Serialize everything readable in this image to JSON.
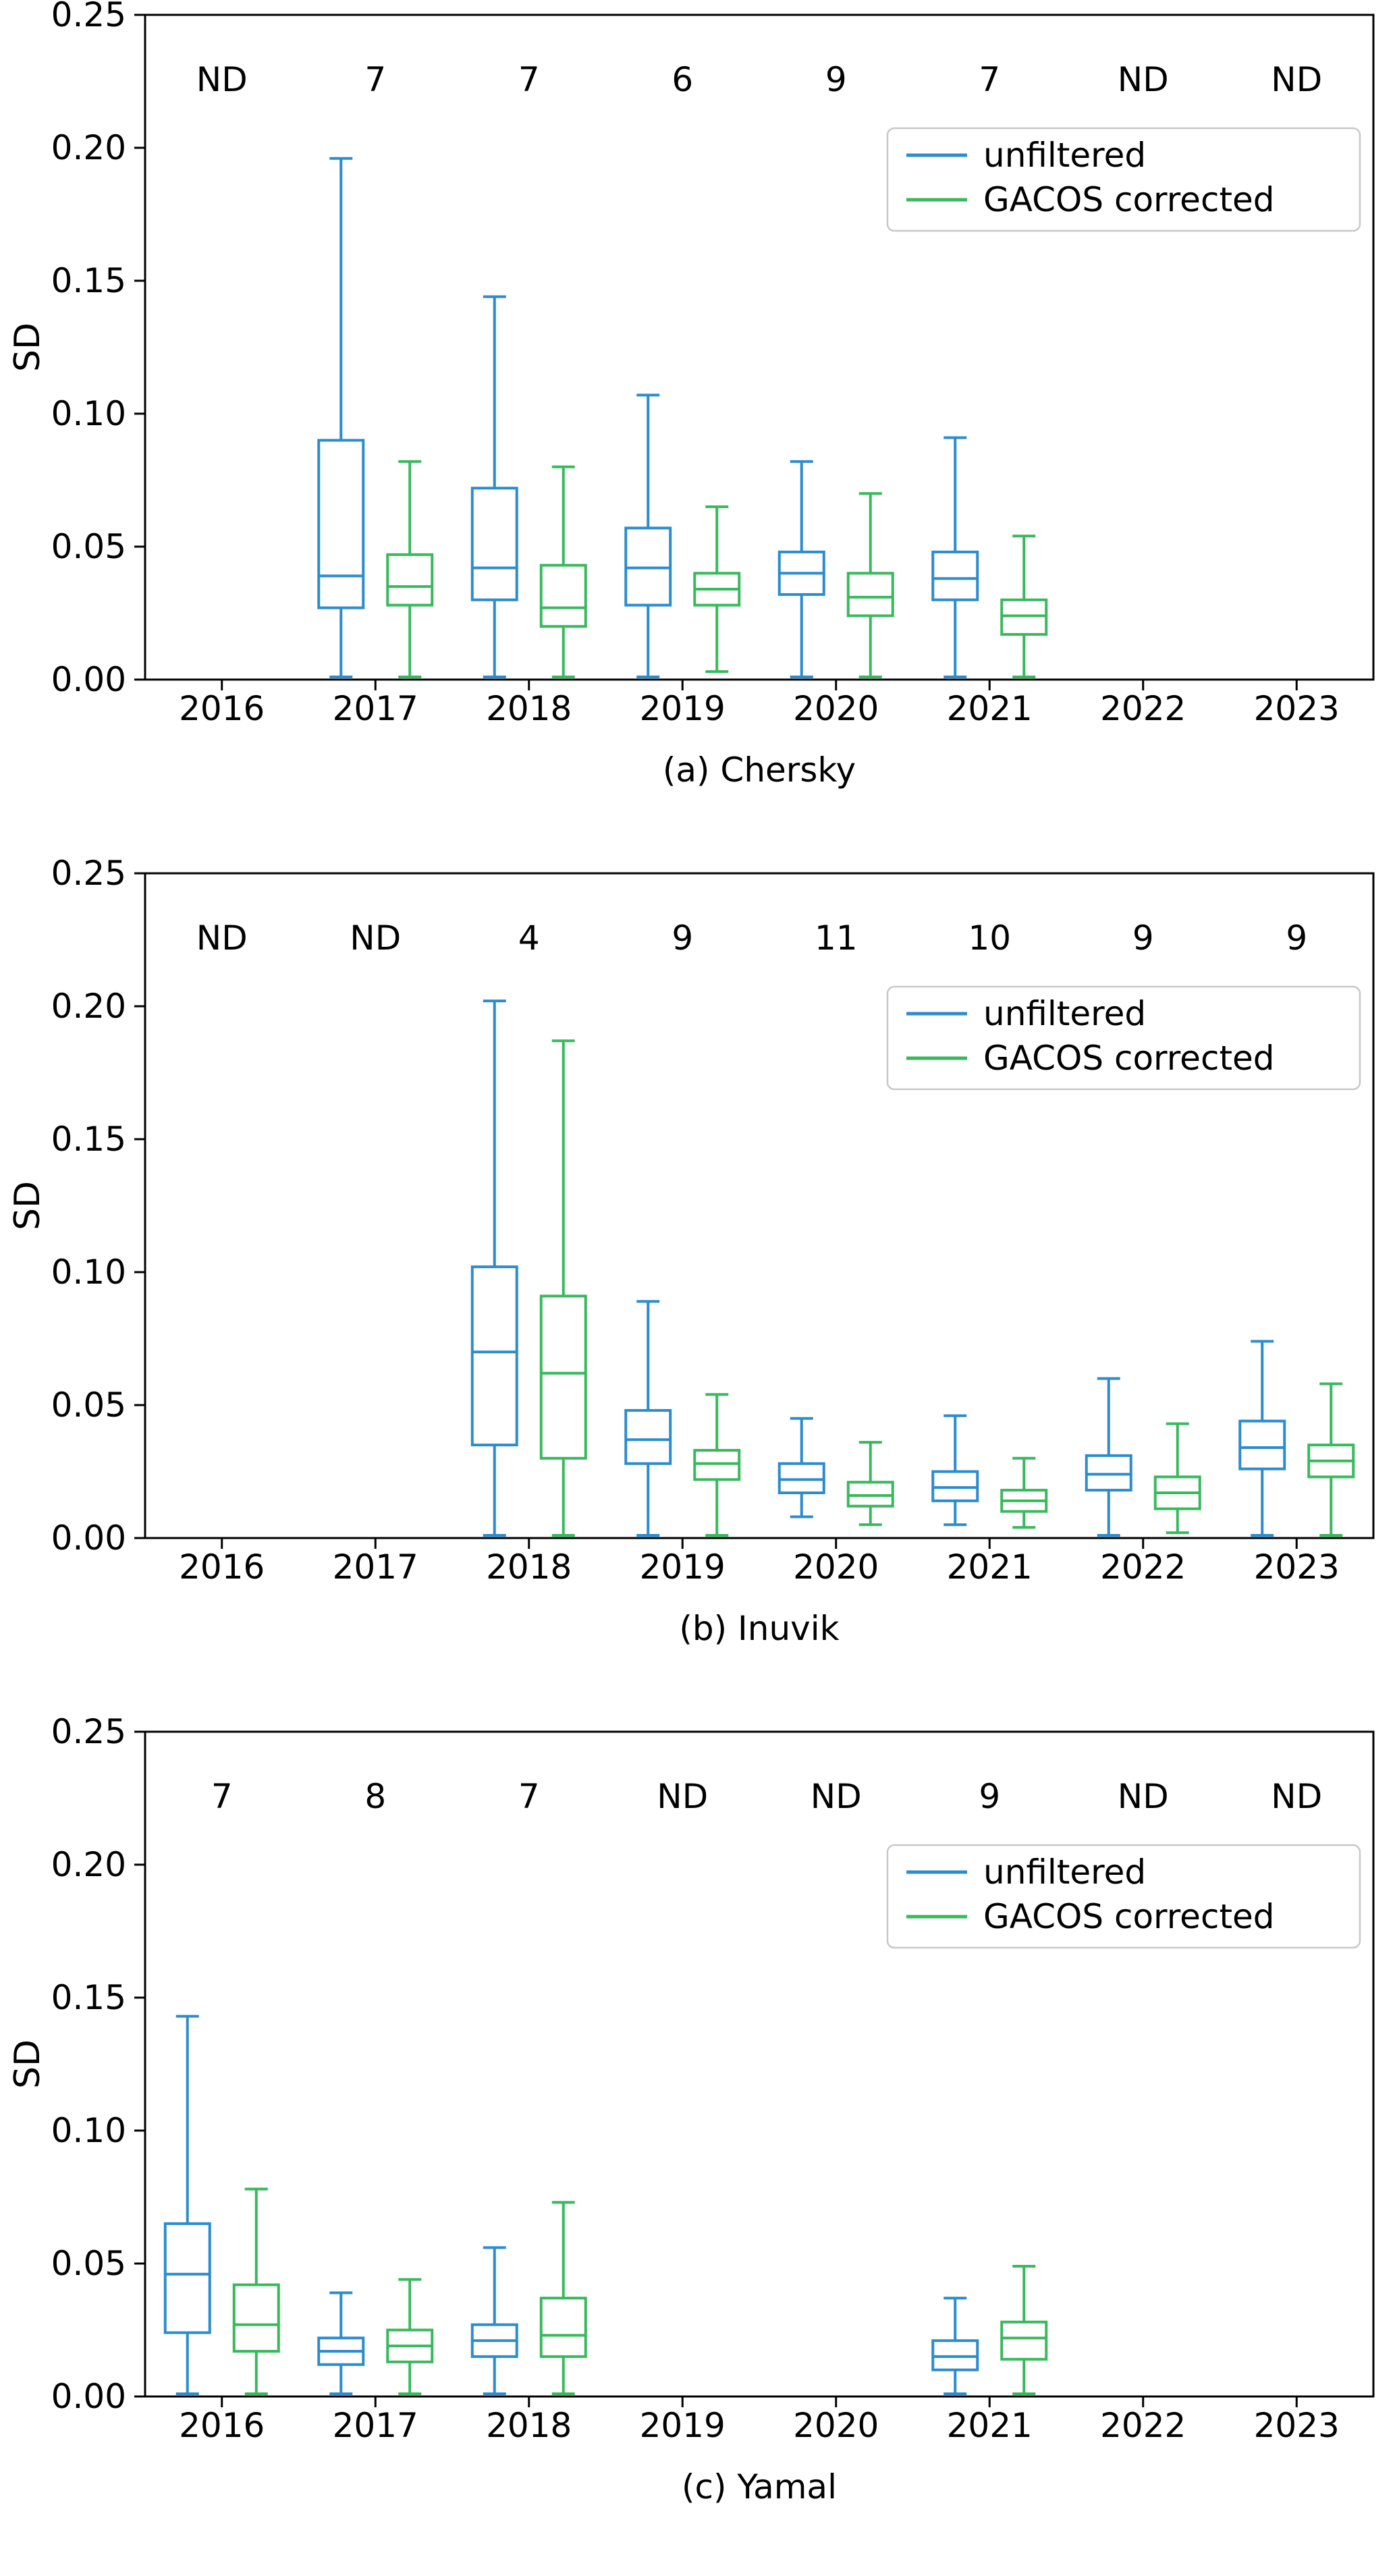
{
  "figure": {
    "ylabel": "SD",
    "ylim": [
      0,
      0.25
    ],
    "ytick_labels": [
      "0.00",
      "0.05",
      "0.10",
      "0.15",
      "0.20",
      "0.25"
    ],
    "years": [
      "2016",
      "2017",
      "2018",
      "2019",
      "2020",
      "2021",
      "2022",
      "2023"
    ],
    "no_data_label": "ND",
    "legend": [
      "unfiltered",
      "GACOS corrected"
    ],
    "colors": {
      "unfiltered": "#2b8cce",
      "gacos_corrected": "#38b95c",
      "axis": "#000000",
      "legend_border": "#c8c8c8"
    }
  },
  "chart_data": [
    {
      "type": "boxplot",
      "title": "(a) Chersky",
      "ylabel": "SD",
      "ylim": [
        0,
        0.25
      ],
      "categories": [
        "2016",
        "2017",
        "2018",
        "2019",
        "2020",
        "2021",
        "2022",
        "2023"
      ],
      "counts": [
        "ND",
        "7",
        "7",
        "6",
        "9",
        "7",
        "ND",
        "ND"
      ],
      "series": [
        {
          "name": "unfiltered",
          "boxes": [
            null,
            {
              "whisker_low": 0.001,
              "q1": 0.027,
              "median": 0.039,
              "q3": 0.09,
              "whisker_high": 0.196
            },
            {
              "whisker_low": 0.001,
              "q1": 0.03,
              "median": 0.042,
              "q3": 0.072,
              "whisker_high": 0.144
            },
            {
              "whisker_low": 0.001,
              "q1": 0.028,
              "median": 0.042,
              "q3": 0.057,
              "whisker_high": 0.107
            },
            {
              "whisker_low": 0.001,
              "q1": 0.032,
              "median": 0.04,
              "q3": 0.048,
              "whisker_high": 0.082
            },
            {
              "whisker_low": 0.001,
              "q1": 0.03,
              "median": 0.038,
              "q3": 0.048,
              "whisker_high": 0.091
            },
            null,
            null
          ]
        },
        {
          "name": "GACOS corrected",
          "boxes": [
            null,
            {
              "whisker_low": 0.001,
              "q1": 0.028,
              "median": 0.035,
              "q3": 0.047,
              "whisker_high": 0.082
            },
            {
              "whisker_low": 0.001,
              "q1": 0.02,
              "median": 0.027,
              "q3": 0.043,
              "whisker_high": 0.08
            },
            {
              "whisker_low": 0.003,
              "q1": 0.028,
              "median": 0.034,
              "q3": 0.04,
              "whisker_high": 0.065
            },
            {
              "whisker_low": 0.001,
              "q1": 0.024,
              "median": 0.031,
              "q3": 0.04,
              "whisker_high": 0.07
            },
            {
              "whisker_low": 0.001,
              "q1": 0.017,
              "median": 0.024,
              "q3": 0.03,
              "whisker_high": 0.054
            },
            null,
            null
          ]
        }
      ]
    },
    {
      "type": "boxplot",
      "title": "(b) Inuvik",
      "ylabel": "SD",
      "ylim": [
        0,
        0.25
      ],
      "categories": [
        "2016",
        "2017",
        "2018",
        "2019",
        "2020",
        "2021",
        "2022",
        "2023"
      ],
      "counts": [
        "ND",
        "ND",
        "4",
        "9",
        "11",
        "10",
        "9",
        "9"
      ],
      "series": [
        {
          "name": "unfiltered",
          "boxes": [
            null,
            null,
            {
              "whisker_low": 0.001,
              "q1": 0.035,
              "median": 0.07,
              "q3": 0.102,
              "whisker_high": 0.202
            },
            {
              "whisker_low": 0.001,
              "q1": 0.028,
              "median": 0.037,
              "q3": 0.048,
              "whisker_high": 0.089
            },
            {
              "whisker_low": 0.008,
              "q1": 0.017,
              "median": 0.022,
              "q3": 0.028,
              "whisker_high": 0.045
            },
            {
              "whisker_low": 0.005,
              "q1": 0.014,
              "median": 0.019,
              "q3": 0.025,
              "whisker_high": 0.046
            },
            {
              "whisker_low": 0.001,
              "q1": 0.018,
              "median": 0.024,
              "q3": 0.031,
              "whisker_high": 0.06
            },
            {
              "whisker_low": 0.001,
              "q1": 0.026,
              "median": 0.034,
              "q3": 0.044,
              "whisker_high": 0.074
            }
          ]
        },
        {
          "name": "GACOS corrected",
          "boxes": [
            null,
            null,
            {
              "whisker_low": 0.001,
              "q1": 0.03,
              "median": 0.062,
              "q3": 0.091,
              "whisker_high": 0.187
            },
            {
              "whisker_low": 0.001,
              "q1": 0.022,
              "median": 0.028,
              "q3": 0.033,
              "whisker_high": 0.054
            },
            {
              "whisker_low": 0.005,
              "q1": 0.012,
              "median": 0.016,
              "q3": 0.021,
              "whisker_high": 0.036
            },
            {
              "whisker_low": 0.004,
              "q1": 0.01,
              "median": 0.014,
              "q3": 0.018,
              "whisker_high": 0.03
            },
            {
              "whisker_low": 0.002,
              "q1": 0.011,
              "median": 0.017,
              "q3": 0.023,
              "whisker_high": 0.043
            },
            {
              "whisker_low": 0.001,
              "q1": 0.023,
              "median": 0.029,
              "q3": 0.035,
              "whisker_high": 0.058
            }
          ]
        }
      ]
    },
    {
      "type": "boxplot",
      "title": "(c) Yamal",
      "ylabel": "SD",
      "ylim": [
        0,
        0.25
      ],
      "categories": [
        "2016",
        "2017",
        "2018",
        "2019",
        "2020",
        "2021",
        "2022",
        "2023"
      ],
      "counts": [
        "7",
        "8",
        "7",
        "ND",
        "ND",
        "9",
        "ND",
        "ND"
      ],
      "series": [
        {
          "name": "unfiltered",
          "boxes": [
            {
              "whisker_low": 0.001,
              "q1": 0.024,
              "median": 0.046,
              "q3": 0.065,
              "whisker_high": 0.143
            },
            {
              "whisker_low": 0.001,
              "q1": 0.012,
              "median": 0.017,
              "q3": 0.022,
              "whisker_high": 0.039
            },
            {
              "whisker_low": 0.001,
              "q1": 0.015,
              "median": 0.021,
              "q3": 0.027,
              "whisker_high": 0.056
            },
            null,
            null,
            {
              "whisker_low": 0.001,
              "q1": 0.01,
              "median": 0.015,
              "q3": 0.021,
              "whisker_high": 0.037
            },
            null,
            null
          ]
        },
        {
          "name": "GACOS corrected",
          "boxes": [
            {
              "whisker_low": 0.001,
              "q1": 0.017,
              "median": 0.027,
              "q3": 0.042,
              "whisker_high": 0.078
            },
            {
              "whisker_low": 0.001,
              "q1": 0.013,
              "median": 0.019,
              "q3": 0.025,
              "whisker_high": 0.044
            },
            {
              "whisker_low": 0.001,
              "q1": 0.015,
              "median": 0.023,
              "q3": 0.037,
              "whisker_high": 0.073
            },
            null,
            null,
            {
              "whisker_low": 0.001,
              "q1": 0.014,
              "median": 0.022,
              "q3": 0.028,
              "whisker_high": 0.049
            },
            null,
            null
          ]
        }
      ]
    }
  ]
}
